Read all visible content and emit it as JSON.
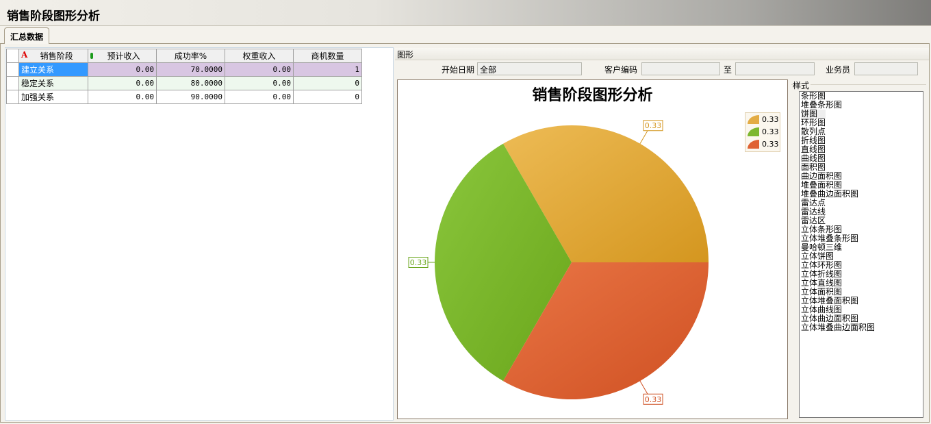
{
  "window": {
    "title": "销售阶段图形分析"
  },
  "tabs": [
    {
      "label": "汇总数据",
      "active": true
    }
  ],
  "table": {
    "columns": [
      "销售阶段",
      "预计收入",
      "成功率%",
      "权重收入",
      "商机数量"
    ],
    "rows": [
      [
        "建立关系",
        "0.00",
        "70.0000",
        "0.00",
        "1"
      ],
      [
        "稳定关系",
        "0.00",
        "80.0000",
        "0.00",
        "0"
      ],
      [
        "加强关系",
        "0.00",
        "90.0000",
        "0.00",
        "0"
      ]
    ]
  },
  "chart_panel": {
    "header": "图形",
    "filters": {
      "start_date_label": "开始日期",
      "start_date_value": "全部",
      "customer_code_label": "客户编码",
      "customer_code_value": "",
      "to_label": "至",
      "to_value": "",
      "salesperson_label": "业务员",
      "salesperson_value": ""
    }
  },
  "chart_data": {
    "type": "pie",
    "title": "销售阶段图形分析",
    "values": [
      0.33,
      0.33,
      0.33
    ],
    "labels": [
      "0.33",
      "0.33",
      "0.33"
    ],
    "colors": [
      "#e3ac45",
      "#7db72f",
      "#df6232"
    ],
    "legend": "top-right"
  },
  "style_panel": {
    "label": "样式",
    "selected": "饼图",
    "items": [
      "条形图",
      "堆叠条形图",
      "饼图",
      "环形图",
      "散列点",
      "折线图",
      "直线图",
      "曲线图",
      "面积图",
      "曲边面积图",
      "堆叠面积图",
      "堆叠曲边面积图",
      "雷达点",
      "雷达线",
      "雷达区",
      "立体条形图",
      "立体堆叠条形图",
      "曼哈顿三维",
      "立体饼图",
      "立体环形图",
      "立体折线图",
      "立体直线图",
      "立体面积图",
      "立体堆叠面积图",
      "立体曲线图",
      "立体曲边面积图",
      "立体堆叠曲边面积图"
    ]
  }
}
